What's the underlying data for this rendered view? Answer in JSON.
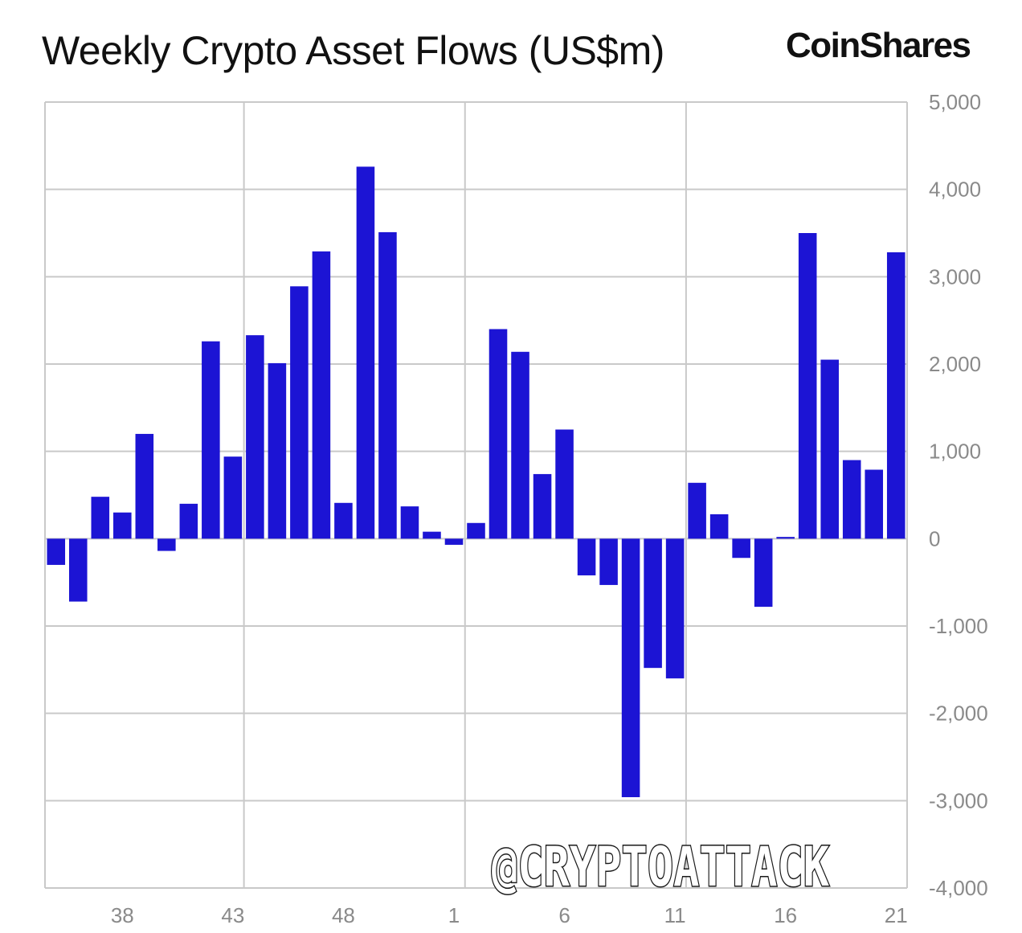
{
  "chart_data": {
    "type": "bar",
    "title": "Weekly Crypto Asset Flows (US$m)",
    "xlabel": "",
    "ylabel": "",
    "ylim": [
      -4000,
      5000
    ],
    "yticks": [
      5000,
      4000,
      3000,
      2000,
      1000,
      0,
      -1000,
      -2000,
      -3000,
      -4000
    ],
    "ytick_labels": [
      "5,000",
      "4,000",
      "3,000",
      "2,000",
      "1,000",
      "0",
      "-1,000",
      "-2,000",
      "-3,000",
      "-4,000"
    ],
    "y_axis_side": "right",
    "grid": true,
    "x_tick_labels": [
      "38",
      "43",
      "48",
      "1",
      "6",
      "11",
      "16",
      "21"
    ],
    "bar_color": "#1c14d4",
    "values": [
      -300,
      -720,
      480,
      300,
      1200,
      -140,
      400,
      2260,
      940,
      2330,
      2010,
      2890,
      3290,
      410,
      4260,
      3510,
      370,
      80,
      -70,
      180,
      2400,
      2140,
      740,
      1250,
      -420,
      -530,
      -2960,
      -1480,
      -1600,
      640,
      280,
      -220,
      -780,
      20,
      3500,
      2050,
      900,
      790,
      3280
    ]
  },
  "brand": {
    "logo_text": "CoinShares"
  },
  "watermark": {
    "text": "@CRYPTOATTACK"
  }
}
